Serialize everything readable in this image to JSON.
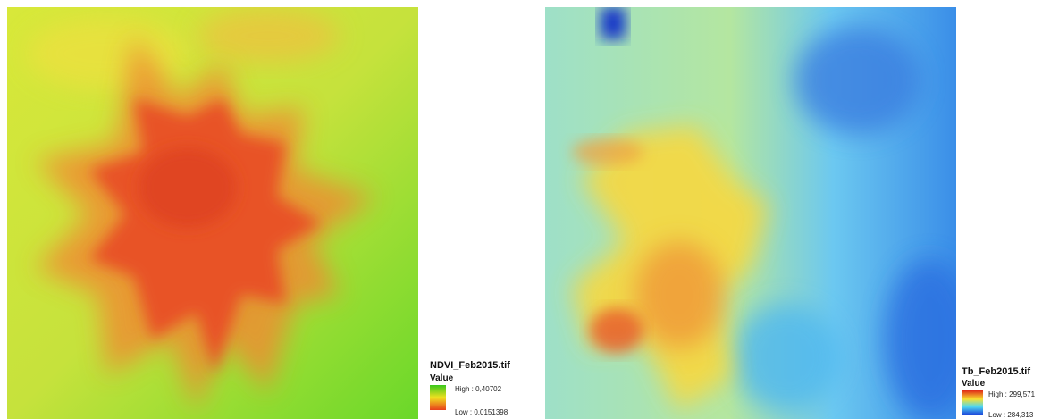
{
  "maps": [
    {
      "legend": {
        "title": "NDVI_Feb2015.tif",
        "field": "Value",
        "high": "High : 0,40702",
        "low": "Low : 0,0151398"
      }
    },
    {
      "legend": {
        "title": "Tb_Feb2015.tif",
        "field": "Value",
        "high": "High : 299,571",
        "low": "Low : 284,313"
      }
    }
  ]
}
